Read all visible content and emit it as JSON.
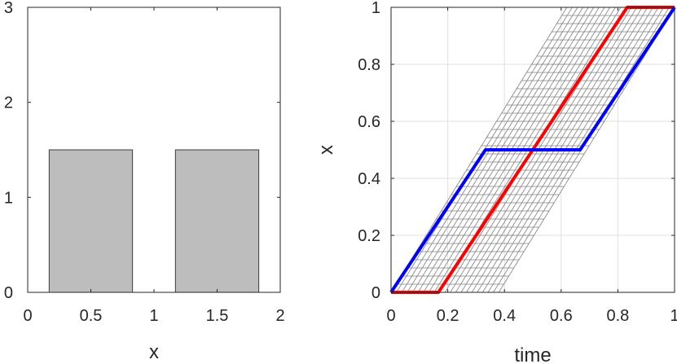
{
  "chart_data": [
    {
      "type": "bar",
      "xlabel": "x",
      "ylabel": "",
      "xlim": [
        0,
        2
      ],
      "ylim": [
        0,
        3
      ],
      "xticks": [
        "0",
        "0.5",
        "1",
        "1.5",
        "2"
      ],
      "yticks": [
        "0",
        "1",
        "2",
        "3"
      ],
      "grid": false,
      "bars": [
        {
          "x_start": 0.17,
          "x_end": 0.83,
          "value": 1.5
        },
        {
          "x_start": 1.17,
          "x_end": 1.83,
          "value": 1.5
        }
      ],
      "colors": {
        "fill": "#bdbdbd",
        "edge": "#3a3a3a"
      }
    },
    {
      "type": "line",
      "xlabel": "time",
      "ylabel": "x",
      "xlim": [
        0,
        1
      ],
      "ylim": [
        0,
        1
      ],
      "xticks": [
        "0",
        "0.2",
        "0.4",
        "0.6",
        "0.8",
        "1"
      ],
      "yticks": [
        "0",
        "0.2",
        "0.4",
        "0.6",
        "0.8",
        "1"
      ],
      "grid": true,
      "series": [
        {
          "color": "#ff0000",
          "x": [
            0,
            0.167,
            0.833,
            1
          ],
          "y": [
            0,
            0,
            1,
            1
          ]
        },
        {
          "color": "#0000ff",
          "x": [
            0,
            0.333,
            0.667,
            1
          ],
          "y": [
            0,
            0.5,
            0.5,
            1
          ]
        }
      ],
      "mesh": {
        "color": "#808080",
        "left_x_at_bottom": 0.0,
        "right_x_at_bottom": 0.38,
        "slope_dx_per_unit_y": 0.62,
        "rows": 35,
        "columns": 20
      }
    }
  ]
}
